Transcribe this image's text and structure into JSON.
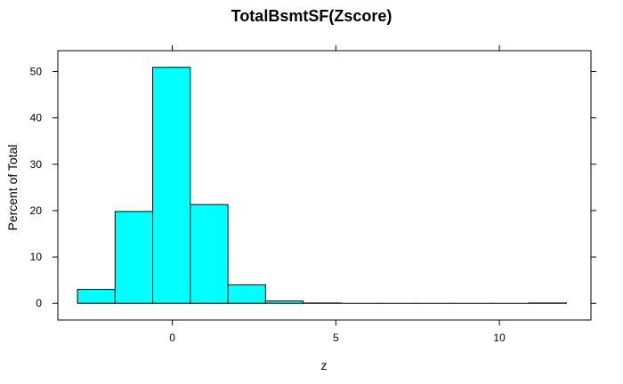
{
  "chart_data": {
    "type": "bar",
    "title": "TotalBsmtSF(Zscore)",
    "xlabel": "z",
    "ylabel": "Percent of Total",
    "xlim": [
      -3.5,
      12.8
    ],
    "ylim": [
      -3.6,
      54.5
    ],
    "x_ticks": [
      0,
      5,
      10
    ],
    "y_ticks": [
      0,
      10,
      20,
      30,
      40,
      50
    ],
    "bins": [
      {
        "x0": -2.9,
        "x1": -1.75,
        "value": 3.0
      },
      {
        "x0": -1.75,
        "x1": -0.6,
        "value": 19.8
      },
      {
        "x0": -0.6,
        "x1": 0.55,
        "value": 50.9
      },
      {
        "x0": 0.55,
        "x1": 1.7,
        "value": 21.3
      },
      {
        "x0": 1.7,
        "x1": 2.85,
        "value": 4.0
      },
      {
        "x0": 2.85,
        "x1": 4.0,
        "value": 0.5
      },
      {
        "x0": 4.0,
        "x1": 5.15,
        "value": 0.07
      },
      {
        "x0": 5.15,
        "x1": 6.3,
        "value": 0
      },
      {
        "x0": 6.3,
        "x1": 7.45,
        "value": 0
      },
      {
        "x0": 7.45,
        "x1": 8.6,
        "value": 0
      },
      {
        "x0": 8.6,
        "x1": 9.75,
        "value": 0
      },
      {
        "x0": 9.75,
        "x1": 10.9,
        "value": 0
      },
      {
        "x0": 10.9,
        "x1": 12.05,
        "value": 0.07
      }
    ],
    "bar_color": "#00ffff",
    "grid": false,
    "legend": "none"
  }
}
